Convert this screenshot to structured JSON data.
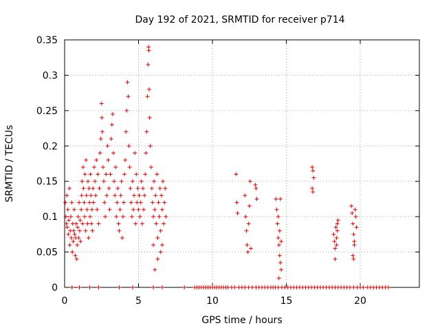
{
  "chart_data": {
    "type": "scatter",
    "title": "Day 192 of 2021, SRMTID for receiver p714",
    "xlabel": "GPS time / hours",
    "ylabel": "SRMTID / TECUs",
    "xlim": [
      0,
      24
    ],
    "ylim": [
      0,
      0.35
    ],
    "xticks": [
      0,
      5,
      10,
      15,
      20
    ],
    "xtick_labels": [
      "0",
      "5",
      "10",
      "15",
      "20"
    ],
    "yticks": [
      0,
      0.05,
      0.1,
      0.15,
      0.2,
      0.25,
      0.3,
      0.35
    ],
    "ytick_labels": [
      "0",
      "0.05",
      "0.1",
      "0.15",
      "0.2",
      "0.25",
      "0.3",
      "0.35"
    ],
    "grid": true,
    "marker": "+",
    "color": "#e00000",
    "series": [
      {
        "name": "SRMTID",
        "points": [
          [
            0.05,
            0.12
          ],
          [
            0.08,
            0.1
          ],
          [
            0.12,
            0.09
          ],
          [
            0.15,
            0.13
          ],
          [
            0.18,
            0.085
          ],
          [
            0.22,
            0.11
          ],
          [
            0.25,
            0.075
          ],
          [
            0.28,
            0.095
          ],
          [
            0.32,
            0.14
          ],
          [
            0.35,
            0.06
          ],
          [
            0.38,
            0.08
          ],
          [
            0.42,
            0.1
          ],
          [
            0.45,
            0.07
          ],
          [
            0.48,
            0.12
          ],
          [
            0.52,
            0.05
          ],
          [
            0.55,
            0.09
          ],
          [
            0.58,
            0.065
          ],
          [
            0.62,
            0.08
          ],
          [
            0.65,
            0.11
          ],
          [
            0.68,
            0.075
          ],
          [
            0.72,
            0.045
          ],
          [
            0.75,
            0.07
          ],
          [
            0.78,
            0.09
          ],
          [
            0.82,
            0.04
          ],
          [
            0.85,
            0.06
          ],
          [
            0.88,
            0.085
          ],
          [
            0.92,
            0.1
          ],
          [
            0.95,
            0.07
          ],
          [
            0.98,
            0.12
          ],
          [
            1.02,
            0.08
          ],
          [
            1.05,
            0.095
          ],
          [
            1.08,
            0.065
          ],
          [
            1.12,
            0.11
          ],
          [
            1.15,
            0.13
          ],
          [
            1.18,
            0.15
          ],
          [
            1.22,
            0.09
          ],
          [
            1.25,
            0.17
          ],
          [
            1.28,
            0.14
          ],
          [
            1.32,
            0.12
          ],
          [
            1.35,
            0.1
          ],
          [
            1.38,
            0.16
          ],
          [
            1.42,
            0.08
          ],
          [
            1.45,
            0.18
          ],
          [
            1.48,
            0.13
          ],
          [
            1.52,
            0.11
          ],
          [
            1.55,
            0.09
          ],
          [
            1.58,
            0.15
          ],
          [
            1.62,
            0.07
          ],
          [
            1.65,
            0.14
          ],
          [
            1.68,
            0.12
          ],
          [
            1.72,
            0.1
          ],
          [
            1.75,
            0.16
          ],
          [
            1.78,
            0.13
          ],
          [
            1.82,
            0.09
          ],
          [
            1.85,
            0.11
          ],
          [
            1.88,
            0.08
          ],
          [
            1.92,
            0.14
          ],
          [
            1.95,
            0.12
          ],
          [
            2.0,
            0.17
          ],
          [
            2.05,
            0.15
          ],
          [
            2.1,
            0.13
          ],
          [
            2.15,
            0.18
          ],
          [
            2.2,
            0.11
          ],
          [
            2.25,
            0.16
          ],
          [
            2.3,
            0.09
          ],
          [
            2.35,
            0.14
          ],
          [
            2.4,
            0.19
          ],
          [
            2.45,
            0.21
          ],
          [
            2.5,
            0.26
          ],
          [
            2.52,
            0.24
          ],
          [
            2.55,
            0.22
          ],
          [
            2.6,
            0.17
          ],
          [
            2.65,
            0.15
          ],
          [
            2.7,
            0.12
          ],
          [
            2.75,
            0.1
          ],
          [
            2.8,
            0.16
          ],
          [
            2.85,
            0.13
          ],
          [
            2.9,
            0.2
          ],
          [
            2.95,
            0.18
          ],
          [
            3.0,
            0.14
          ],
          [
            3.05,
            0.11
          ],
          [
            3.1,
            0.16
          ],
          [
            3.15,
            0.21
          ],
          [
            3.2,
            0.23
          ],
          [
            3.25,
            0.245
          ],
          [
            3.3,
            0.19
          ],
          [
            3.35,
            0.15
          ],
          [
            3.4,
            0.13
          ],
          [
            3.45,
            0.17
          ],
          [
            3.5,
            0.1
          ],
          [
            3.55,
            0.12
          ],
          [
            3.6,
            0.14
          ],
          [
            3.65,
            0.09
          ],
          [
            3.7,
            0.08
          ],
          [
            3.75,
            0.11
          ],
          [
            3.8,
            0.13
          ],
          [
            3.85,
            0.15
          ],
          [
            3.9,
            0.07
          ],
          [
            3.95,
            0.1
          ],
          [
            4.0,
            0.12
          ],
          [
            4.05,
            0.16
          ],
          [
            4.1,
            0.18
          ],
          [
            4.15,
            0.22
          ],
          [
            4.2,
            0.25
          ],
          [
            4.25,
            0.29
          ],
          [
            4.3,
            0.27
          ],
          [
            4.35,
            0.2
          ],
          [
            4.4,
            0.17
          ],
          [
            4.45,
            0.14
          ],
          [
            4.5,
            0.12
          ],
          [
            4.55,
            0.1
          ],
          [
            4.6,
            0.15
          ],
          [
            4.65,
            0.11
          ],
          [
            4.7,
            0.13
          ],
          [
            4.75,
            0.19
          ],
          [
            4.8,
            0.09
          ],
          [
            4.85,
            0.16
          ],
          [
            4.9,
            0.12
          ],
          [
            4.95,
            0.14
          ],
          [
            5.0,
            0.11
          ],
          [
            5.05,
            0.13
          ],
          [
            5.1,
            0.1
          ],
          [
            5.15,
            0.12
          ],
          [
            5.2,
            0.15
          ],
          [
            5.25,
            0.09
          ],
          [
            5.3,
            0.14
          ],
          [
            5.35,
            0.11
          ],
          [
            5.4,
            0.13
          ],
          [
            5.45,
            0.16
          ],
          [
            5.5,
            0.19
          ],
          [
            5.55,
            0.22
          ],
          [
            5.6,
            0.27
          ],
          [
            5.65,
            0.315
          ],
          [
            5.68,
            0.34
          ],
          [
            5.7,
            0.335
          ],
          [
            5.72,
            0.28
          ],
          [
            5.75,
            0.24
          ],
          [
            5.8,
            0.2
          ],
          [
            5.85,
            0.17
          ],
          [
            5.9,
            0.14
          ],
          [
            5.95,
            0.12
          ],
          [
            6.0,
            0.1
          ],
          [
            6.05,
            0.15
          ],
          [
            6.1,
            0.11
          ],
          [
            6.15,
            0.13
          ],
          [
            6.2,
            0.09
          ],
          [
            6.25,
            0.16
          ],
          [
            6.3,
            0.07
          ],
          [
            6.35,
            0.12
          ],
          [
            6.4,
            0.1
          ],
          [
            6.45,
            0.14
          ],
          [
            6.5,
            0.08
          ],
          [
            6.55,
            0.13
          ],
          [
            6.6,
            0.11
          ],
          [
            6.65,
            0.15
          ],
          [
            6.7,
            0.09
          ],
          [
            6.75,
            0.12
          ],
          [
            6.8,
            0.14
          ],
          [
            6.85,
            0.1
          ],
          [
            6.5,
            0.05
          ],
          [
            6.3,
            0.04
          ],
          [
            6.1,
            0.025
          ],
          [
            6.0,
            0.06
          ],
          [
            6.6,
            0.06
          ],
          [
            11.6,
            0.16
          ],
          [
            11.65,
            0.12
          ],
          [
            11.7,
            0.105
          ],
          [
            12.2,
            0.13
          ],
          [
            12.25,
            0.1
          ],
          [
            12.3,
            0.08
          ],
          [
            12.35,
            0.06
          ],
          [
            12.4,
            0.05
          ],
          [
            12.45,
            0.09
          ],
          [
            12.5,
            0.115
          ],
          [
            12.55,
            0.15
          ],
          [
            12.6,
            0.055
          ],
          [
            12.9,
            0.145
          ],
          [
            12.95,
            0.14
          ],
          [
            13.0,
            0.125
          ],
          [
            14.3,
            0.125
          ],
          [
            14.35,
            0.11
          ],
          [
            14.4,
            0.09
          ],
          [
            14.45,
            0.07
          ],
          [
            14.5,
            0.06
          ],
          [
            14.55,
            0.045
          ],
          [
            14.6,
            0.035
          ],
          [
            14.65,
            0.025
          ],
          [
            14.5,
            0.013
          ],
          [
            14.45,
            0.1
          ],
          [
            14.55,
            0.08
          ],
          [
            14.6,
            0.125
          ],
          [
            14.65,
            0.065
          ],
          [
            16.75,
            0.17
          ],
          [
            16.8,
            0.165
          ],
          [
            16.85,
            0.155
          ],
          [
            16.75,
            0.14
          ],
          [
            16.8,
            0.135
          ],
          [
            18.2,
            0.075
          ],
          [
            18.25,
            0.065
          ],
          [
            18.3,
            0.055
          ],
          [
            18.35,
            0.085
          ],
          [
            18.4,
            0.07
          ],
          [
            18.45,
            0.09
          ],
          [
            18.5,
            0.095
          ],
          [
            18.3,
            0.04
          ],
          [
            18.4,
            0.06
          ],
          [
            18.45,
            0.08
          ],
          [
            19.4,
            0.115
          ],
          [
            19.45,
            0.105
          ],
          [
            19.5,
            0.09
          ],
          [
            19.55,
            0.075
          ],
          [
            19.6,
            0.065
          ],
          [
            19.65,
            0.11
          ],
          [
            19.7,
            0.1
          ],
          [
            19.75,
            0.085
          ],
          [
            19.5,
            0.045
          ],
          [
            19.55,
            0.04
          ],
          [
            19.6,
            0.06
          ]
        ],
        "zero_x": [
          0.5,
          1.0,
          1.7,
          2.3,
          3.7,
          4.6,
          6.0,
          6.6,
          8.1,
          8.8,
          8.95,
          9.1,
          9.25,
          9.4,
          9.55,
          9.7,
          9.85,
          10.0,
          10.15,
          10.3,
          10.45,
          10.6,
          10.75,
          10.9,
          11.05,
          11.3,
          11.5,
          11.8,
          12.0,
          12.2,
          12.45,
          12.7,
          12.95,
          13.15,
          13.35,
          13.55,
          13.75,
          13.95,
          14.1,
          14.25,
          14.45,
          14.7,
          14.9,
          15.1,
          15.3,
          15.5,
          15.7,
          15.9,
          16.1,
          16.3,
          16.5,
          16.7,
          16.9,
          17.1,
          17.3,
          17.5,
          17.7,
          17.9,
          18.1,
          18.3,
          18.5,
          18.7,
          18.9,
          19.1,
          19.3,
          19.55,
          19.8,
          20.0,
          20.2,
          20.5,
          20.7,
          20.9,
          21.1,
          21.3,
          21.5,
          21.7,
          21.9
        ]
      }
    ]
  }
}
